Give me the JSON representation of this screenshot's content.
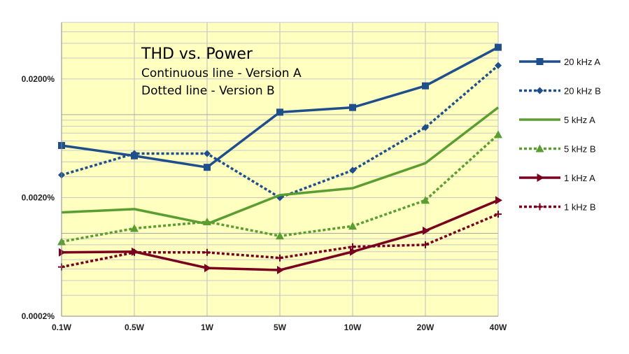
{
  "chart_data": {
    "type": "line",
    "title": "THD vs. Power",
    "subtitle_lines": [
      "Continuous line - Version A",
      "Dotted line - Version B"
    ],
    "x_scale": "categorical",
    "y_scale": "log",
    "categories": [
      "0.1W",
      "0.5W",
      "1W",
      "5W",
      "10W",
      "20W",
      "40W"
    ],
    "y_ticks": [
      {
        "value": 0.0002,
        "label": "0.0002%"
      },
      {
        "value": 0.002,
        "label": "0.0020%"
      },
      {
        "value": 0.02,
        "label": "0.0200%"
      }
    ],
    "ylim": [
      0.0002,
      0.06
    ],
    "grid": true,
    "plot_background": "#ffffc0",
    "legend_position": "right",
    "series": [
      {
        "name": "20 kHz A",
        "color": "#1f4e8c",
        "line": "solid",
        "marker": "square",
        "values": [
          0.0055,
          0.0045,
          0.0036,
          0.0105,
          0.0115,
          0.0175,
          0.037
        ]
      },
      {
        "name": "20 kHz B",
        "color": "#1f4e8c",
        "line": "dotted",
        "marker": "diamond",
        "values": [
          0.0031,
          0.0047,
          0.0047,
          0.002,
          0.0034,
          0.0078,
          0.026
        ]
      },
      {
        "name": "5 kHz A",
        "color": "#5a9e32",
        "line": "solid",
        "marker": "none",
        "values": [
          0.0015,
          0.0016,
          0.0012,
          0.0021,
          0.0024,
          0.0039,
          0.0115
        ]
      },
      {
        "name": "5 kHz B",
        "color": "#5a9e32",
        "line": "dotted",
        "marker": "triangle",
        "values": [
          0.00085,
          0.0011,
          0.00125,
          0.00095,
          0.00115,
          0.0019,
          0.0068
        ]
      },
      {
        "name": "1 kHz A",
        "color": "#7a0020",
        "line": "solid",
        "marker": "arrow",
        "values": [
          0.00069,
          0.0007,
          0.00051,
          0.00049,
          0.0007,
          0.00105,
          0.0019
        ]
      },
      {
        "name": "1 kHz B",
        "color": "#7a0020",
        "line": "dotted",
        "marker": "plus",
        "values": [
          0.00052,
          0.00069,
          0.00069,
          0.00062,
          0.00077,
          0.0008,
          0.00145
        ]
      }
    ]
  }
}
